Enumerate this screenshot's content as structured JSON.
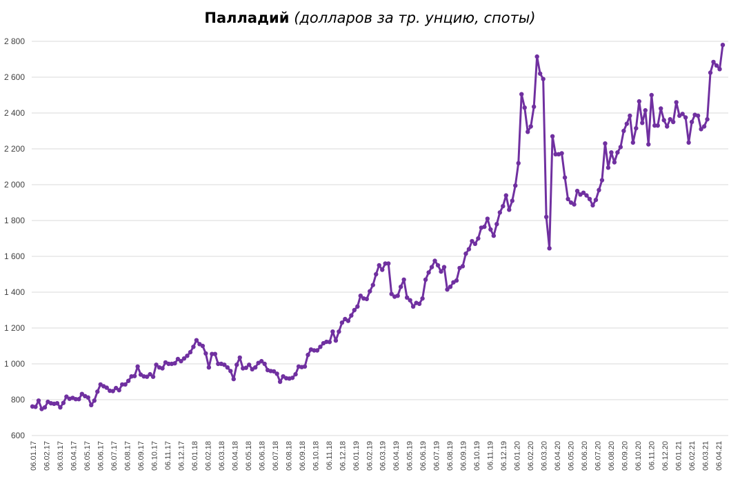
{
  "chart_data": {
    "type": "line",
    "title": "Палладий",
    "subtitle": "(долларов за тр. унцию, споты)",
    "xlabel": "",
    "ylabel": "",
    "ylim": [
      600,
      2800
    ],
    "y_ticks": [
      "600",
      "800",
      "1 000",
      "1 200",
      "1 400",
      "1 600",
      "1 800",
      "2 000",
      "2 200",
      "2 400",
      "2 600",
      "2 800"
    ],
    "x_tick_labels": [
      "06.01.17",
      "06.02.17",
      "06.03.17",
      "06.04.17",
      "06.05.17",
      "06.06.17",
      "06.07.17",
      "06.08.17",
      "06.09.17",
      "06.10.17",
      "06.11.17",
      "06.12.17",
      "06.01.18",
      "06.02.18",
      "06.03.18",
      "06.04.18",
      "06.05.18",
      "06.06.18",
      "06.07.18",
      "06.08.18",
      "06.09.18",
      "06.10.18",
      "06.11.18",
      "06.12.18",
      "06.01.19",
      "06.02.19",
      "06.03.19",
      "06.04.19",
      "06.05.19",
      "06.06.19",
      "06.07.19",
      "06.08.19",
      "06.09.19",
      "06.10.19",
      "06.11.19",
      "06.12.19",
      "06.01.20",
      "06.02.20",
      "06.03.20",
      "06.04.20",
      "06.05.20",
      "06.06.20",
      "06.07.20",
      "06.08.20",
      "06.09.20",
      "06.10.20",
      "06.11.20",
      "06.12.20",
      "06.01.21",
      "06.02.21",
      "06.03.21",
      "06.04.21"
    ],
    "grid": true,
    "legend": "none",
    "series": [
      {
        "color": "#7030a0",
        "values": [
          762,
          760,
          795,
          748,
          757,
          788,
          780,
          777,
          780,
          757,
          782,
          817,
          805,
          810,
          803,
          803,
          832,
          820,
          812,
          770,
          795,
          845,
          885,
          875,
          867,
          850,
          848,
          865,
          853,
          885,
          885,
          905,
          930,
          932,
          985,
          940,
          930,
          928,
          942,
          928,
          995,
          980,
          975,
          1008,
          1000,
          1000,
          1003,
          1027,
          1015,
          1030,
          1045,
          1065,
          1095,
          1132,
          1110,
          1100,
          1058,
          980,
          1055,
          1055,
          1000,
          1000,
          995,
          980,
          960,
          915,
          995,
          1035,
          975,
          978,
          995,
          970,
          980,
          1005,
          1015,
          1000,
          965,
          960,
          958,
          945,
          900,
          930,
          920,
          918,
          922,
          942,
          985,
          982,
          985,
          1050,
          1080,
          1075,
          1075,
          1095,
          1115,
          1123,
          1122,
          1180,
          1130,
          1180,
          1230,
          1250,
          1240,
          1270,
          1300,
          1320,
          1380,
          1365,
          1362,
          1405,
          1440,
          1500,
          1550,
          1525,
          1560,
          1560,
          1390,
          1375,
          1380,
          1430,
          1470,
          1370,
          1355,
          1320,
          1340,
          1335,
          1365,
          1470,
          1510,
          1540,
          1575,
          1550,
          1515,
          1540,
          1415,
          1430,
          1455,
          1465,
          1535,
          1545,
          1615,
          1640,
          1685,
          1670,
          1700,
          1760,
          1765,
          1810,
          1750,
          1715,
          1780,
          1845,
          1880,
          1940,
          1860,
          1910,
          1995,
          2120,
          2505,
          2430,
          2295,
          2325,
          2435,
          2715,
          2620,
          2590,
          1820,
          1645,
          2270,
          2170,
          2170,
          2175,
          2040,
          1920,
          1900,
          1890,
          1965,
          1945,
          1955,
          1940,
          1920,
          1885,
          1915,
          1970,
          2025,
          2230,
          2095,
          2180,
          2125,
          2180,
          2210,
          2300,
          2340,
          2385,
          2235,
          2315,
          2465,
          2345,
          2415,
          2225,
          2500,
          2330,
          2330,
          2425,
          2360,
          2325,
          2365,
          2350,
          2460,
          2385,
          2395,
          2375,
          2235,
          2350,
          2390,
          2385,
          2310,
          2325,
          2365,
          2625,
          2685,
          2665,
          2645,
          2780
        ]
      }
    ]
  }
}
